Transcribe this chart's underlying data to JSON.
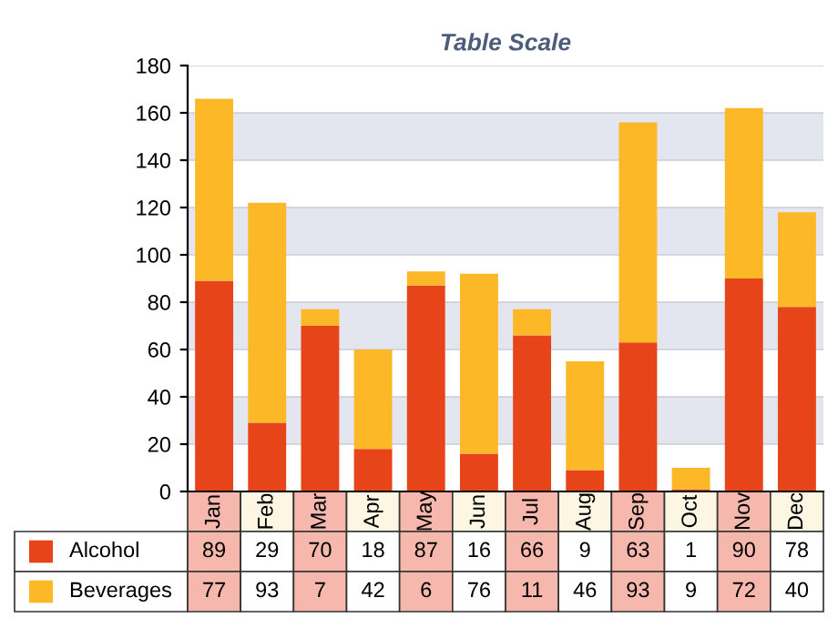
{
  "chart_data": {
    "type": "bar",
    "title": "Table Scale",
    "stacked": true,
    "categories": [
      "Jan",
      "Feb",
      "Mar",
      "Apr",
      "May",
      "Jun",
      "Jul",
      "Aug",
      "Sep",
      "Oct",
      "Nov",
      "Dec"
    ],
    "series": [
      {
        "name": "Alcohol",
        "color": "#e8441a",
        "values": [
          89,
          29,
          70,
          18,
          87,
          16,
          66,
          9,
          63,
          1,
          90,
          78
        ]
      },
      {
        "name": "Beverages",
        "color": "#fdb827",
        "values": [
          77,
          93,
          7,
          42,
          6,
          76,
          11,
          46,
          93,
          9,
          72,
          40
        ]
      }
    ],
    "ylim": [
      0,
      180
    ],
    "yticks": [
      0,
      20,
      40,
      60,
      80,
      100,
      120,
      140,
      160,
      180
    ],
    "grid": "y",
    "data_labels": true,
    "legend": "bottom left"
  }
}
